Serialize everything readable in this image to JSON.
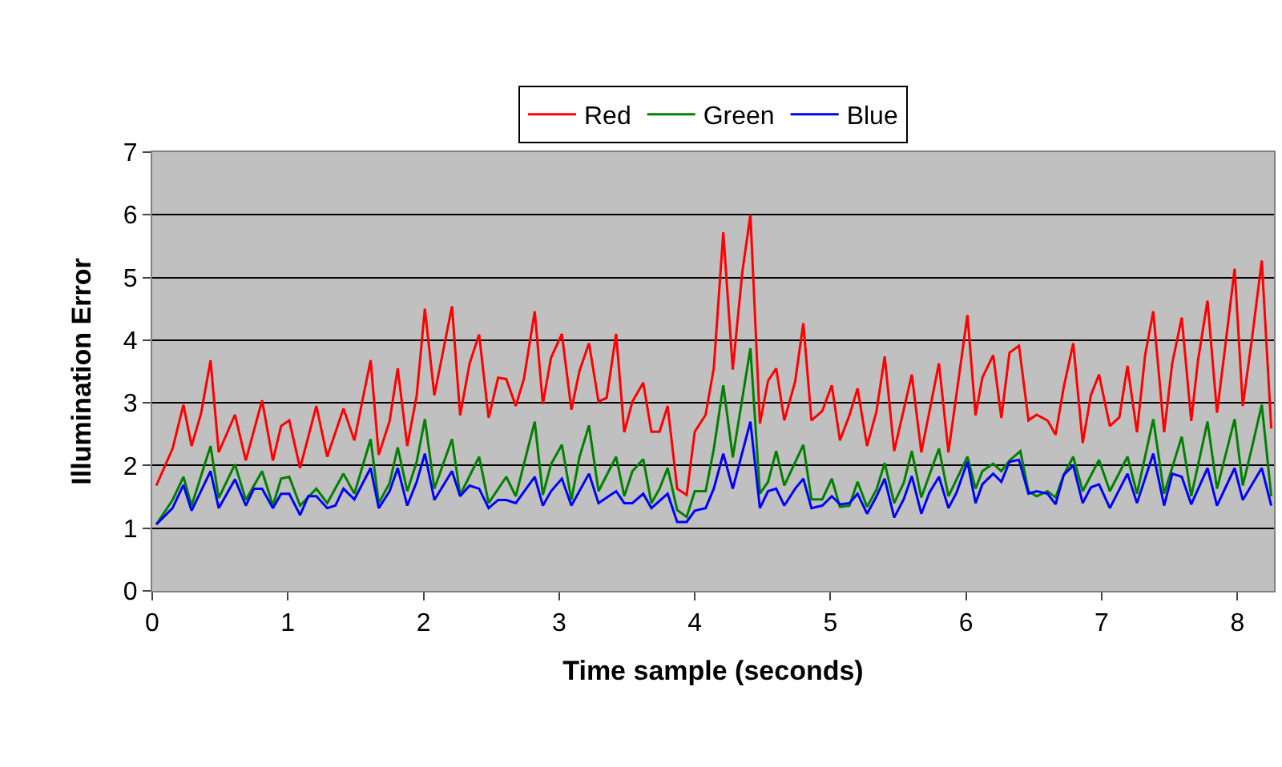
{
  "chart_data": {
    "type": "line",
    "xlabel": "Time sample (seconds)",
    "ylabel": "Illumination Error",
    "xlim": [
      0,
      8.27
    ],
    "xticks": [
      0,
      1,
      2,
      3,
      4,
      5,
      6,
      7,
      8
    ],
    "ylim": [
      0,
      7
    ],
    "yticks": [
      0,
      1,
      2,
      3,
      4,
      5,
      6,
      7
    ],
    "grid": "y",
    "legend": "top",
    "marker": "none",
    "line_style": "solid",
    "series": [
      {
        "name": "Red",
        "color": "#ff0000",
        "x": [
          0.03,
          0.15,
          0.23,
          0.29,
          0.36,
          0.43,
          0.49,
          0.61,
          0.69,
          0.81,
          0.89,
          0.95,
          1.01,
          1.09,
          1.21,
          1.29,
          1.41,
          1.49,
          1.61,
          1.67,
          1.75,
          1.81,
          1.88,
          1.95,
          2.01,
          2.08,
          2.21,
          2.27,
          2.34,
          2.41,
          2.48,
          2.55,
          2.61,
          2.68,
          2.74,
          2.82,
          2.88,
          2.94,
          3.02,
          3.09,
          3.15,
          3.22,
          3.29,
          3.35,
          3.42,
          3.48,
          3.54,
          3.62,
          3.68,
          3.74,
          3.8,
          3.87,
          3.94,
          4.0,
          4.08,
          4.14,
          4.21,
          4.28,
          4.35,
          4.41,
          4.48,
          4.54,
          4.6,
          4.66,
          4.74,
          4.8,
          4.86,
          4.94,
          5.01,
          5.07,
          5.14,
          5.2,
          5.27,
          5.34,
          5.4,
          5.47,
          5.6,
          5.67,
          5.8,
          5.87,
          6.01,
          6.07,
          6.12,
          6.2,
          6.26,
          6.32,
          6.39,
          6.46,
          6.52,
          6.6,
          6.66,
          6.72,
          6.79,
          6.86,
          6.92,
          6.98,
          7.06,
          7.13,
          7.19,
          7.26,
          7.32,
          7.38,
          7.46,
          7.52,
          7.59,
          7.66,
          7.71,
          7.78,
          7.85,
          7.91,
          7.98,
          8.04,
          8.11,
          8.18,
          8.25
        ],
        "values": [
          1.68,
          2.27,
          2.97,
          2.31,
          2.83,
          3.68,
          2.21,
          2.81,
          2.08,
          3.04,
          2.08,
          2.63,
          2.72,
          1.96,
          2.95,
          2.14,
          2.91,
          2.4,
          3.68,
          2.17,
          2.71,
          3.55,
          2.31,
          3.12,
          4.5,
          3.12,
          4.54,
          2.8,
          3.63,
          4.09,
          2.76,
          3.4,
          3.38,
          2.95,
          3.38,
          4.46,
          2.98,
          3.72,
          4.1,
          2.89,
          3.51,
          3.95,
          3.02,
          3.08,
          4.1,
          2.53,
          3.02,
          3.32,
          2.54,
          2.54,
          2.95,
          1.63,
          1.53,
          2.54,
          2.81,
          3.55,
          5.72,
          3.53,
          5.08,
          6.0,
          2.67,
          3.35,
          3.55,
          2.72,
          3.34,
          4.27,
          2.72,
          2.87,
          3.28,
          2.4,
          2.8,
          3.23,
          2.31,
          2.87,
          3.74,
          2.23,
          3.45,
          2.21,
          3.63,
          2.21,
          4.4,
          2.8,
          3.4,
          3.76,
          2.76,
          3.8,
          3.91,
          2.72,
          2.81,
          2.72,
          2.49,
          3.25,
          3.95,
          2.36,
          3.12,
          3.45,
          2.63,
          2.77,
          3.59,
          2.53,
          3.76,
          4.46,
          2.53,
          3.63,
          4.36,
          2.71,
          3.68,
          4.63,
          2.84,
          3.89,
          5.14,
          2.95,
          4.06,
          5.27,
          2.59
        ]
      },
      {
        "name": "Green",
        "color": "#008000",
        "x": [
          0.03,
          0.15,
          0.23,
          0.29,
          0.43,
          0.49,
          0.61,
          0.69,
          0.81,
          0.89,
          0.95,
          1.01,
          1.09,
          1.21,
          1.29,
          1.41,
          1.49,
          1.61,
          1.67,
          1.75,
          1.81,
          1.88,
          1.95,
          2.01,
          2.08,
          2.21,
          2.27,
          2.41,
          2.48,
          2.61,
          2.68,
          2.74,
          2.82,
          2.88,
          2.94,
          3.02,
          3.09,
          3.15,
          3.22,
          3.29,
          3.42,
          3.48,
          3.54,
          3.62,
          3.68,
          3.74,
          3.8,
          3.87,
          3.94,
          4.0,
          4.08,
          4.14,
          4.21,
          4.28,
          4.41,
          4.48,
          4.54,
          4.6,
          4.66,
          4.8,
          4.86,
          4.94,
          5.01,
          5.07,
          5.14,
          5.2,
          5.27,
          5.34,
          5.4,
          5.47,
          5.54,
          5.6,
          5.67,
          5.8,
          5.87,
          6.01,
          6.07,
          6.12,
          6.2,
          6.26,
          6.32,
          6.4,
          6.46,
          6.52,
          6.6,
          6.66,
          6.72,
          6.79,
          6.86,
          6.98,
          7.06,
          7.19,
          7.26,
          7.38,
          7.46,
          7.59,
          7.66,
          7.78,
          7.85,
          7.98,
          8.04,
          8.11,
          8.18,
          8.25
        ],
        "values": [
          1.06,
          1.45,
          1.82,
          1.36,
          2.31,
          1.48,
          2.02,
          1.45,
          1.91,
          1.36,
          1.79,
          1.82,
          1.36,
          1.63,
          1.4,
          1.87,
          1.55,
          2.42,
          1.4,
          1.72,
          2.29,
          1.59,
          2.06,
          2.74,
          1.63,
          2.42,
          1.53,
          2.14,
          1.4,
          1.82,
          1.51,
          2.02,
          2.7,
          1.53,
          2.02,
          2.33,
          1.45,
          2.14,
          2.64,
          1.59,
          2.14,
          1.51,
          1.91,
          2.1,
          1.4,
          1.63,
          1.96,
          1.29,
          1.18,
          1.59,
          1.59,
          2.26,
          3.28,
          2.13,
          3.87,
          1.55,
          1.74,
          2.23,
          1.68,
          2.33,
          1.46,
          1.46,
          1.79,
          1.34,
          1.36,
          1.74,
          1.34,
          1.62,
          2.04,
          1.4,
          1.72,
          2.23,
          1.49,
          2.27,
          1.51,
          2.14,
          1.63,
          1.91,
          2.03,
          1.91,
          2.08,
          2.23,
          1.59,
          1.51,
          1.59,
          1.49,
          1.85,
          2.14,
          1.59,
          2.09,
          1.59,
          2.14,
          1.55,
          2.74,
          1.55,
          2.46,
          1.51,
          2.7,
          1.63,
          2.74,
          1.68,
          2.31,
          2.97,
          1.51
        ]
      },
      {
        "name": "Blue",
        "color": "#0000ff",
        "x": [
          0.03,
          0.15,
          0.23,
          0.29,
          0.43,
          0.49,
          0.61,
          0.69,
          0.75,
          0.81,
          0.89,
          0.95,
          1.01,
          1.09,
          1.15,
          1.21,
          1.29,
          1.35,
          1.41,
          1.49,
          1.61,
          1.67,
          1.75,
          1.81,
          1.88,
          1.95,
          2.01,
          2.08,
          2.21,
          2.27,
          2.34,
          2.41,
          2.48,
          2.55,
          2.61,
          2.68,
          2.82,
          2.88,
          2.94,
          3.02,
          3.09,
          3.22,
          3.29,
          3.42,
          3.48,
          3.54,
          3.62,
          3.68,
          3.8,
          3.87,
          3.94,
          4.0,
          4.08,
          4.14,
          4.21,
          4.28,
          4.41,
          4.48,
          4.54,
          4.6,
          4.66,
          4.74,
          4.8,
          4.86,
          4.94,
          5.01,
          5.07,
          5.14,
          5.2,
          5.27,
          5.34,
          5.4,
          5.47,
          5.54,
          5.6,
          5.67,
          5.73,
          5.8,
          5.87,
          5.93,
          6.01,
          6.07,
          6.12,
          6.2,
          6.26,
          6.32,
          6.39,
          6.46,
          6.52,
          6.6,
          6.66,
          6.72,
          6.79,
          6.86,
          6.92,
          6.98,
          7.06,
          7.19,
          7.26,
          7.38,
          7.46,
          7.52,
          7.59,
          7.66,
          7.78,
          7.85,
          7.98,
          8.04,
          8.18,
          8.25
        ],
        "values": [
          1.06,
          1.32,
          1.69,
          1.28,
          1.91,
          1.32,
          1.78,
          1.36,
          1.63,
          1.63,
          1.32,
          1.55,
          1.55,
          1.21,
          1.51,
          1.51,
          1.32,
          1.36,
          1.63,
          1.46,
          1.96,
          1.32,
          1.59,
          1.96,
          1.36,
          1.74,
          2.19,
          1.45,
          1.91,
          1.51,
          1.68,
          1.63,
          1.32,
          1.45,
          1.45,
          1.4,
          1.82,
          1.36,
          1.59,
          1.79,
          1.36,
          1.87,
          1.4,
          1.59,
          1.4,
          1.4,
          1.55,
          1.32,
          1.55,
          1.1,
          1.1,
          1.28,
          1.32,
          1.63,
          2.19,
          1.63,
          2.7,
          1.32,
          1.59,
          1.63,
          1.36,
          1.63,
          1.79,
          1.32,
          1.36,
          1.51,
          1.38,
          1.4,
          1.55,
          1.23,
          1.51,
          1.79,
          1.17,
          1.46,
          1.83,
          1.23,
          1.57,
          1.82,
          1.32,
          1.57,
          2.06,
          1.4,
          1.7,
          1.87,
          1.74,
          2.06,
          2.09,
          1.55,
          1.59,
          1.55,
          1.38,
          1.85,
          2.0,
          1.4,
          1.65,
          1.7,
          1.32,
          1.87,
          1.4,
          2.19,
          1.36,
          1.87,
          1.82,
          1.38,
          1.96,
          1.36,
          1.96,
          1.45,
          1.96,
          1.36
        ]
      }
    ]
  }
}
